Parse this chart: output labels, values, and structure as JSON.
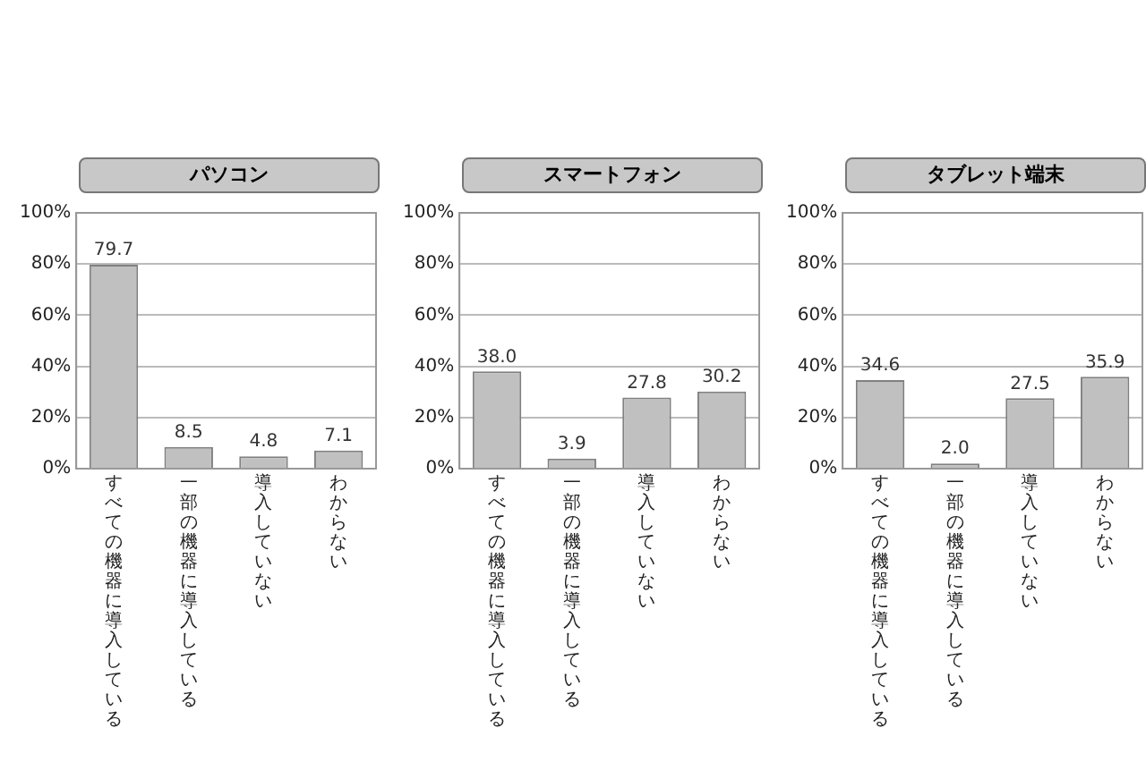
{
  "chart_data": [
    {
      "type": "bar",
      "title": "パソコン",
      "categories": [
        "すべての機器に導入している",
        "一部の機器に導入している",
        "導入していない",
        "わからない"
      ],
      "values": [
        79.7,
        8.5,
        4.8,
        7.1
      ],
      "color": "#c0c0c0",
      "ylim": [
        0,
        100
      ],
      "yticks": [
        {
          "value": 0,
          "label": "0%"
        },
        {
          "value": 20,
          "label": "20%"
        },
        {
          "value": 40,
          "label": "40%"
        },
        {
          "value": 60,
          "label": "60%"
        },
        {
          "value": 80,
          "label": "80%"
        },
        {
          "value": 100,
          "label": "100%"
        }
      ],
      "grid": "y",
      "data_labels": true
    },
    {
      "type": "bar",
      "title": "スマートフォン",
      "categories": [
        "すべての機器に導入している",
        "一部の機器に導入している",
        "導入していない",
        "わからない"
      ],
      "values": [
        38.0,
        3.9,
        27.8,
        30.2
      ],
      "value_labels": [
        "38.0",
        "3.9",
        "27.8",
        "30.2"
      ],
      "color": "#c0c0c0",
      "ylim": [
        0,
        100
      ],
      "yticks": [
        {
          "value": 0,
          "label": "0%"
        },
        {
          "value": 20,
          "label": "20%"
        },
        {
          "value": 40,
          "label": "40%"
        },
        {
          "value": 60,
          "label": "60%"
        },
        {
          "value": 80,
          "label": "80%"
        },
        {
          "value": 100,
          "label": "100%"
        }
      ],
      "grid": "y"
    },
    {
      "type": "bar",
      "title": "タブレット端末",
      "categories": [
        "すべての機器に導入している",
        "一部の機器に導入している",
        "導入していない",
        "わからない"
      ],
      "values": [
        34.6,
        2.0,
        27.5,
        35.9
      ],
      "value_labels": [
        "34.6",
        "2.0",
        "27.5",
        "35.9"
      ],
      "color": "#c0c0c0",
      "ylim": [
        0,
        100
      ],
      "yticks": [
        {
          "value": 0,
          "label": "0%"
        },
        {
          "value": 20,
          "label": "20%"
        },
        {
          "value": 40,
          "label": "40%"
        },
        {
          "value": 60,
          "label": "60%"
        },
        {
          "value": 80,
          "label": "80%"
        },
        {
          "value": 100,
          "label": "100%"
        }
      ],
      "grid": "y"
    }
  ]
}
